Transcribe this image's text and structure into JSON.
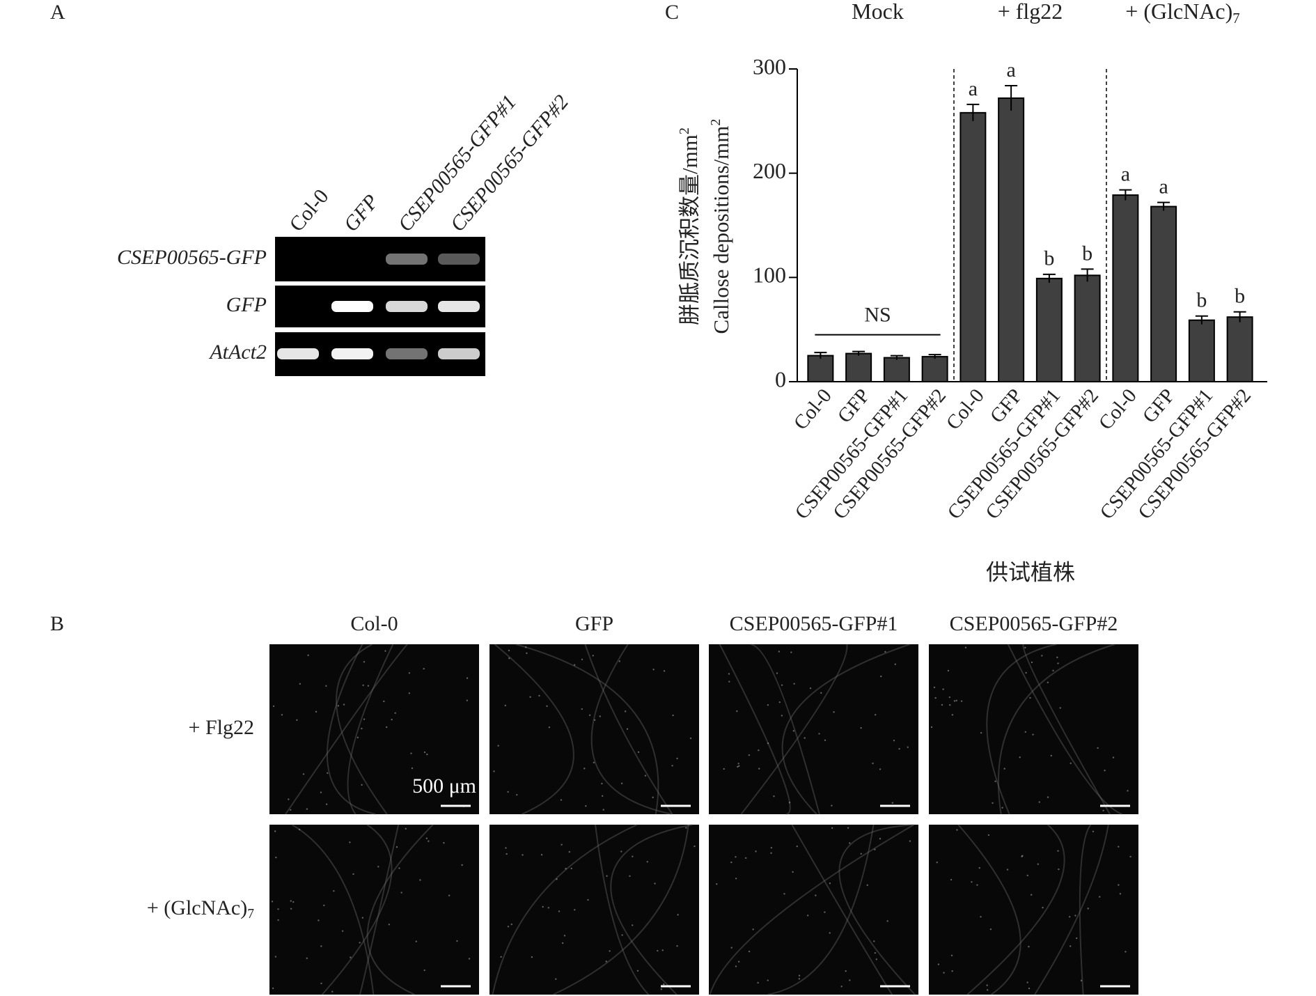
{
  "panel_a": {
    "label": "A",
    "lanes": [
      "Col-0",
      "GFP",
      "CSEP00565-GFP#1",
      "CSEP00565-GFP#2"
    ],
    "rows": [
      "CSEP00565-GFP",
      "GFP",
      "AtAct2"
    ]
  },
  "panel_b": {
    "label": "B",
    "columns": [
      "Col-0",
      "GFP",
      "CSEP00565-GFP#1",
      "CSEP00565-GFP#2"
    ],
    "rows": [
      {
        "text": "+ Flg22"
      },
      {
        "text": "+ (GlcNAc)",
        "subscript": "7"
      }
    ],
    "scale_bar": "500 μm"
  },
  "chart_data": {
    "type": "bar",
    "panel_label": "C",
    "groups": [
      {
        "name": "Mock"
      },
      {
        "name": "+ flg22"
      },
      {
        "name": "+ (GlcNAc)",
        "subscript": "7"
      }
    ],
    "categories": [
      "Col-0",
      "GFP",
      "CSEP00565-GFP#1",
      "CSEP00565-GFP#2",
      "Col-0",
      "GFP",
      "CSEP00565-GFP#1",
      "CSEP00565-GFP#2",
      "Col-0",
      "GFP",
      "CSEP00565-GFP#1",
      "CSEP00565-GFP#2"
    ],
    "values": [
      25,
      27,
      23,
      24,
      258,
      272,
      99,
      102,
      179,
      168,
      59,
      62
    ],
    "errors": [
      3,
      2,
      2,
      2,
      8,
      12,
      4,
      6,
      5,
      4,
      4,
      5
    ],
    "letters": [
      null,
      null,
      null,
      null,
      "a",
      "a",
      "b",
      "b",
      "a",
      "a",
      "b",
      "b"
    ],
    "ns_label": "NS",
    "color": "#404040",
    "y_label": [
      {
        "text": "胼胝质沉积数量/mm",
        "superscript": "2"
      },
      {
        "text": "Callose depositions/mm",
        "superscript": "2"
      }
    ],
    "x_label": "供试植株",
    "ylim": [
      0,
      300
    ],
    "yticks": [
      0,
      100,
      200,
      300
    ]
  }
}
